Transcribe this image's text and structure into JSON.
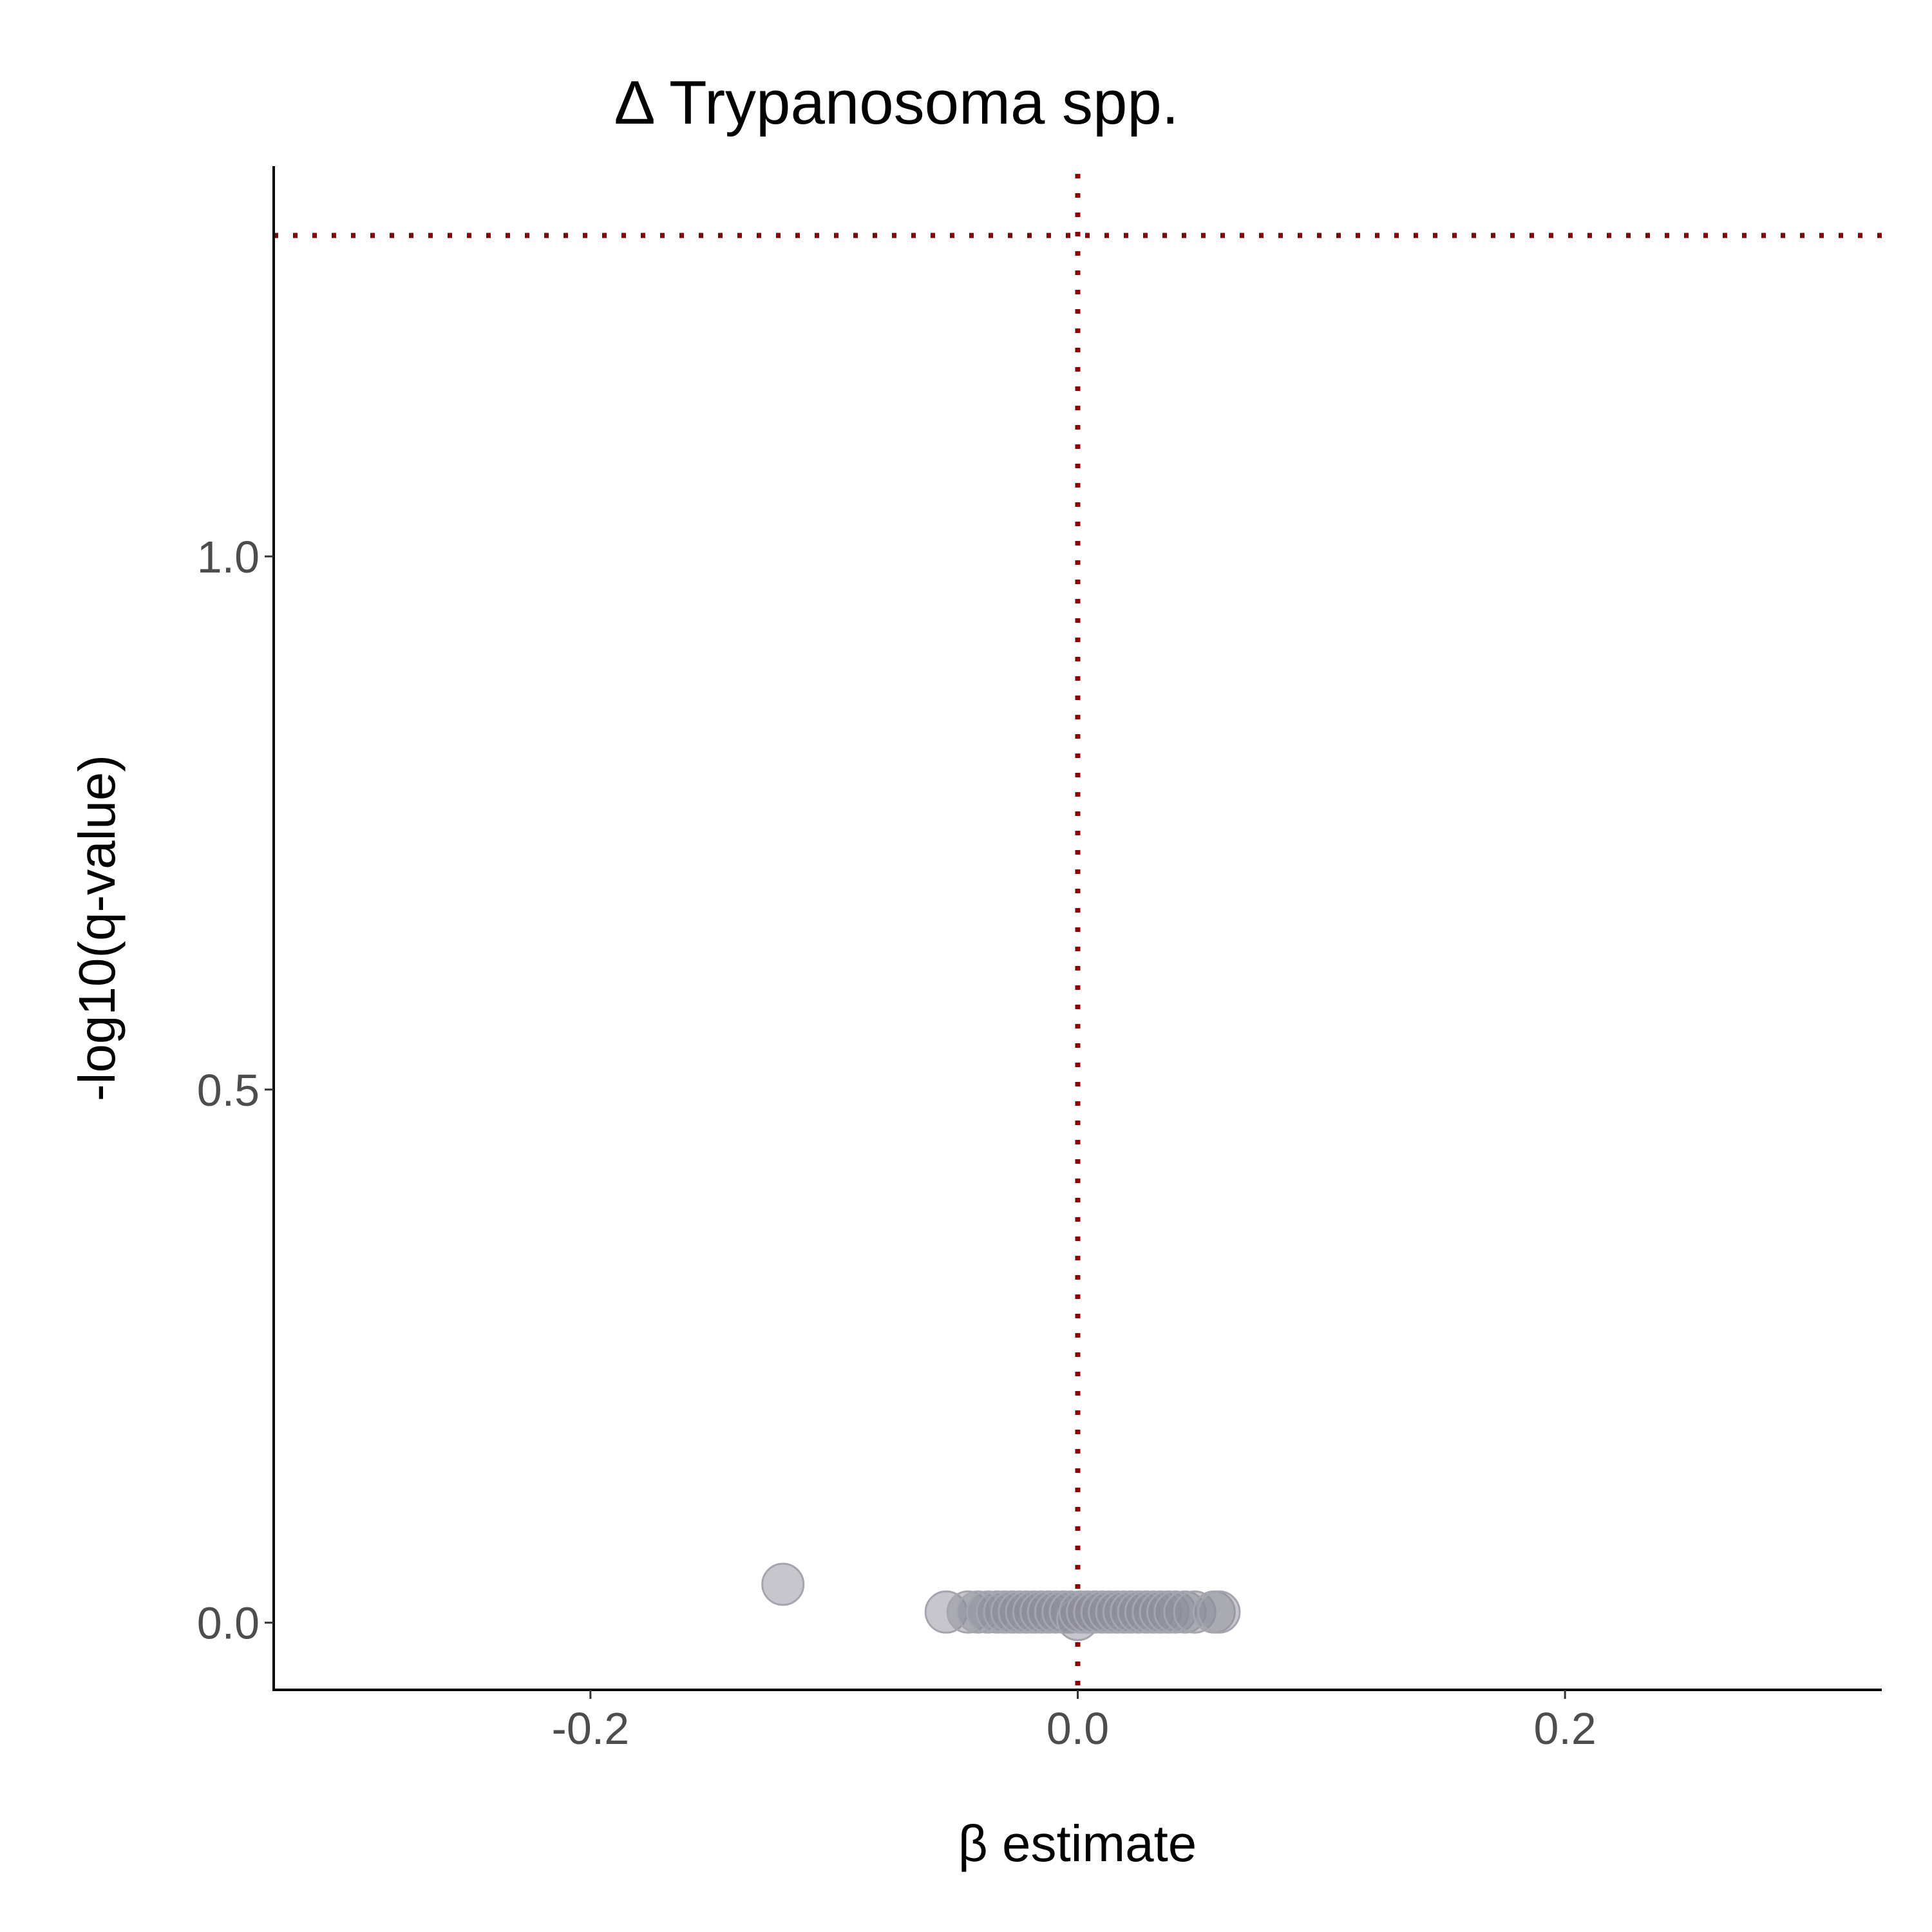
{
  "chart_data": {
    "type": "scatter",
    "title": "Δ  Trypanosoma spp.",
    "xlabel": "β estimate",
    "ylabel": "-log10(q-value)",
    "xlim": [
      -0.33,
      0.33
    ],
    "ylim": [
      -0.063,
      1.366
    ],
    "x_ticks": [
      {
        "value": -0.2,
        "label": "-0.2"
      },
      {
        "value": 0.0,
        "label": "0.0"
      },
      {
        "value": 0.2,
        "label": "0.2"
      }
    ],
    "y_ticks": [
      {
        "value": 0.0,
        "label": "0.0"
      },
      {
        "value": 0.5,
        "label": "0.5"
      },
      {
        "value": 1.0,
        "label": "1.0"
      }
    ],
    "reference_lines": {
      "vertical_x": 0.0,
      "horizontal_y": 1.301,
      "color": "#8b0000"
    },
    "grid": false,
    "legend": "none",
    "point_color": "#8e8e9a",
    "point_opacity": 0.5,
    "points": [
      {
        "x": -0.121,
        "y": 0.036
      },
      {
        "x": -0.054,
        "y": 0.01
      },
      {
        "x": -0.045,
        "y": 0.01
      },
      {
        "x": -0.041,
        "y": 0.01
      },
      {
        "x": -0.037,
        "y": 0.01
      },
      {
        "x": -0.033,
        "y": 0.01
      },
      {
        "x": -0.03,
        "y": 0.01
      },
      {
        "x": -0.027,
        "y": 0.01
      },
      {
        "x": -0.024,
        "y": 0.01
      },
      {
        "x": -0.021,
        "y": 0.01
      },
      {
        "x": -0.018,
        "y": 0.01
      },
      {
        "x": -0.015,
        "y": 0.01
      },
      {
        "x": -0.012,
        "y": 0.01
      },
      {
        "x": -0.009,
        "y": 0.01
      },
      {
        "x": -0.006,
        "y": 0.01
      },
      {
        "x": -0.003,
        "y": 0.01
      },
      {
        "x": 0.0,
        "y": 0.003
      },
      {
        "x": 0.001,
        "y": 0.01
      },
      {
        "x": 0.004,
        "y": 0.01
      },
      {
        "x": 0.007,
        "y": 0.01
      },
      {
        "x": 0.01,
        "y": 0.01
      },
      {
        "x": 0.013,
        "y": 0.01
      },
      {
        "x": 0.016,
        "y": 0.01
      },
      {
        "x": 0.019,
        "y": 0.01
      },
      {
        "x": 0.022,
        "y": 0.01
      },
      {
        "x": 0.025,
        "y": 0.01
      },
      {
        "x": 0.028,
        "y": 0.01
      },
      {
        "x": 0.031,
        "y": 0.01
      },
      {
        "x": 0.034,
        "y": 0.01
      },
      {
        "x": 0.037,
        "y": 0.01
      },
      {
        "x": 0.04,
        "y": 0.01
      },
      {
        "x": 0.044,
        "y": 0.01
      },
      {
        "x": 0.048,
        "y": 0.01
      },
      {
        "x": 0.056,
        "y": 0.01
      },
      {
        "x": 0.058,
        "y": 0.01
      }
    ]
  }
}
